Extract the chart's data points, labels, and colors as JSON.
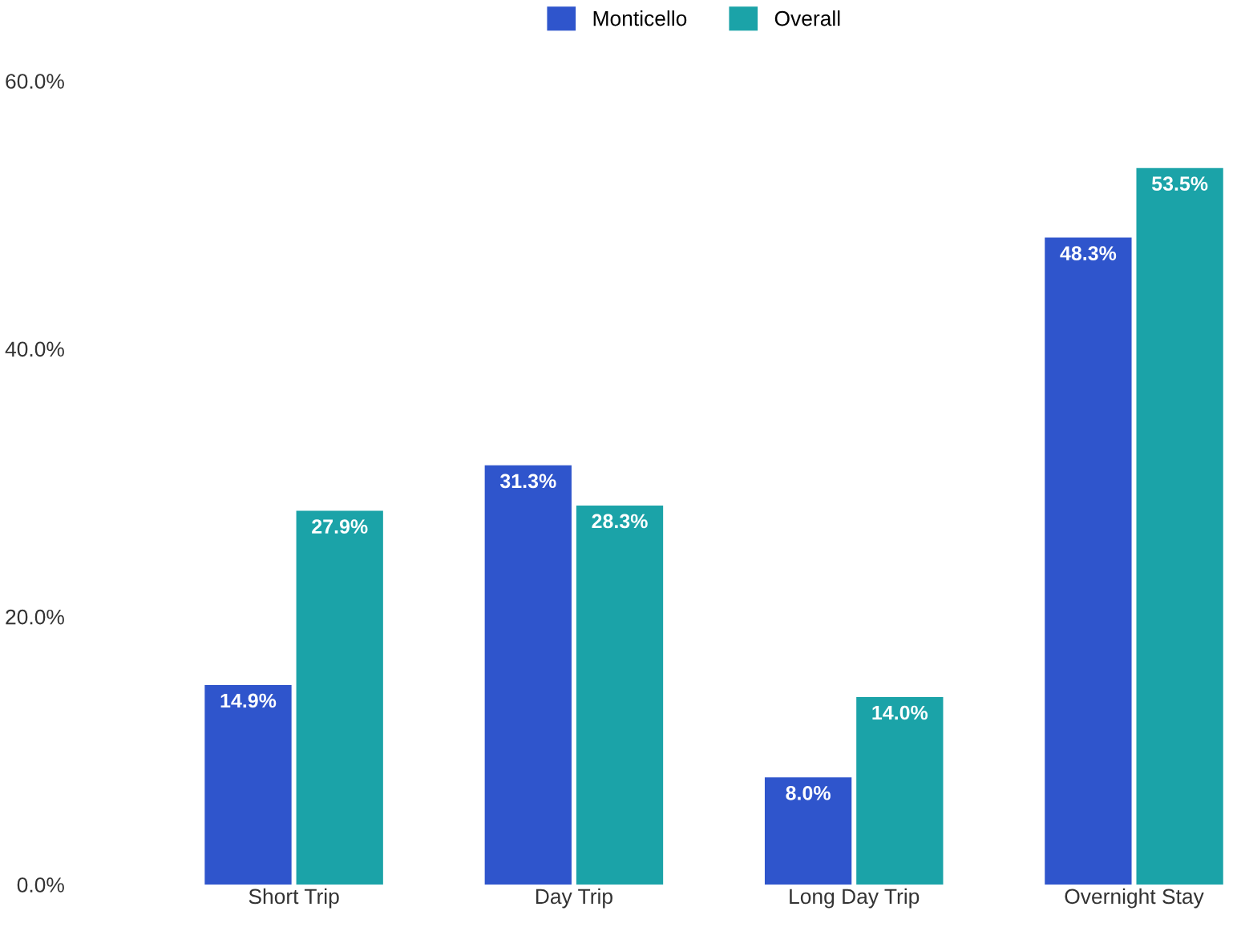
{
  "chart_data": {
    "type": "bar",
    "categories": [
      "Short Trip",
      "Day Trip",
      "Long Day Trip",
      "Overnight Stay"
    ],
    "series": [
      {
        "name": "Monticello",
        "color": "#2f55cc",
        "values": [
          14.9,
          31.3,
          8.0,
          48.3
        ],
        "value_labels": [
          "14.9%",
          "31.3%",
          "8.0%",
          "48.3%"
        ]
      },
      {
        "name": "Overall",
        "color": "#1ba3a8",
        "values": [
          27.9,
          28.3,
          14.0,
          53.5
        ],
        "value_labels": [
          "27.9%",
          "28.3%",
          "14.0%",
          "53.5%"
        ]
      }
    ],
    "ylim": [
      0,
      60
    ],
    "yticks": [
      {
        "value": 0,
        "label": "0.0%"
      },
      {
        "value": 20,
        "label": "20.0%"
      },
      {
        "value": 40,
        "label": "40.0%"
      },
      {
        "value": 60,
        "label": "60.0%"
      }
    ],
    "grid": false,
    "legend": "top"
  }
}
